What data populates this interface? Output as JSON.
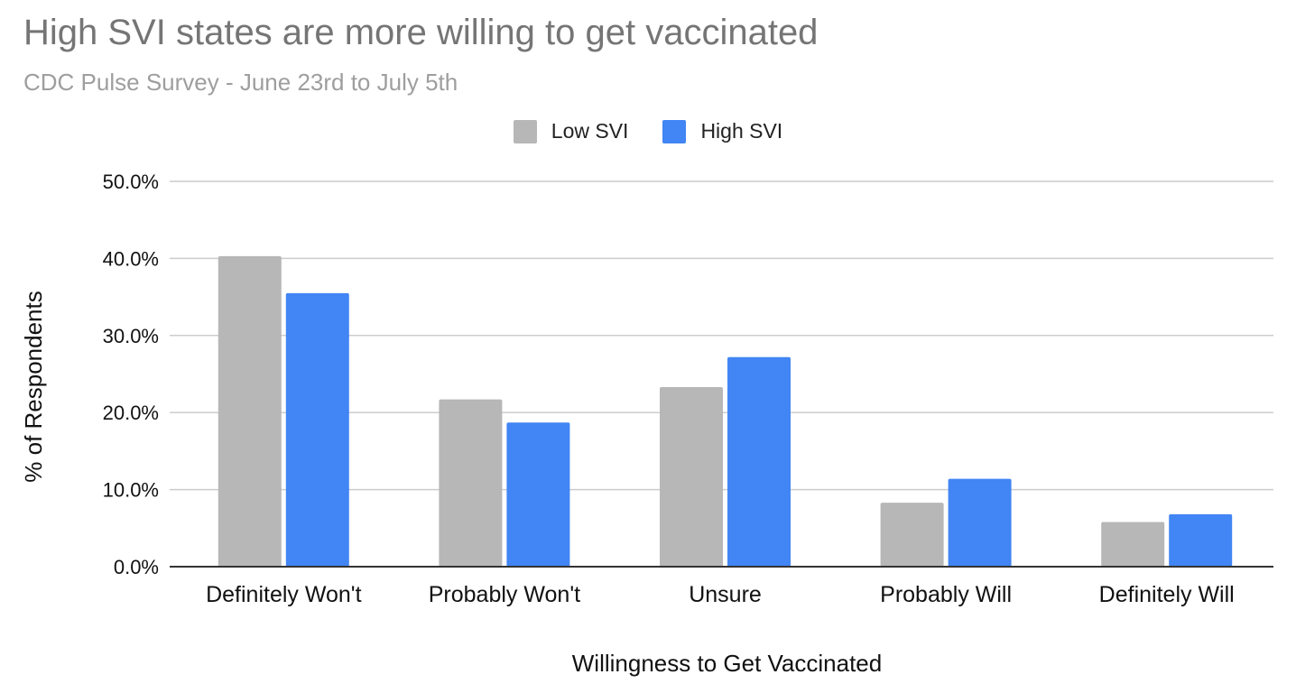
{
  "colors": {
    "low_svi": "#b7b7b7",
    "high_svi": "#4285f4",
    "grid": "#cccccc",
    "baseline": "#333333"
  },
  "chart_data": {
    "type": "bar",
    "title": "High SVI states are more willing to get vaccinated",
    "subtitle": "CDC Pulse Survey - June 23rd to July 5th",
    "xlabel": "Willingness to Get Vaccinated",
    "ylabel": "% of Respondents",
    "categories": [
      "Definitely Won't",
      "Probably Won't",
      "Unsure",
      "Probably Will",
      "Definitely Will"
    ],
    "series": [
      {
        "name": "Low SVI",
        "values": [
          40.3,
          21.7,
          23.3,
          8.3,
          5.8
        ]
      },
      {
        "name": "High SVI",
        "values": [
          35.5,
          18.7,
          27.2,
          11.4,
          6.8
        ]
      }
    ],
    "ylim": [
      0,
      50
    ],
    "yticks": [
      "0.0%",
      "10.0%",
      "20.0%",
      "30.0%",
      "40.0%",
      "50.0%"
    ],
    "grid": true,
    "legend_position": "top-center"
  }
}
